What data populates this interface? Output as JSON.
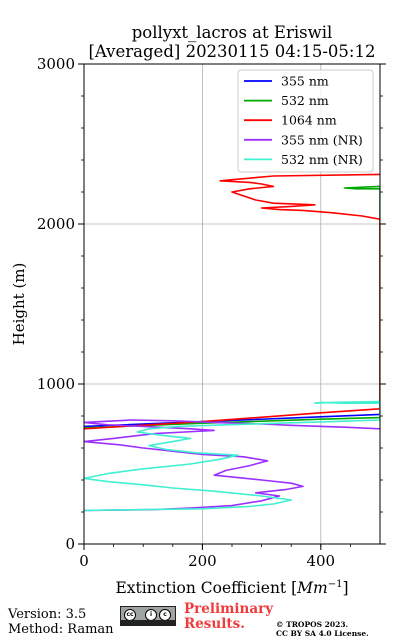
{
  "chart_data": {
    "type": "line",
    "title": "pollyxt_lacros at Eriswil",
    "subtitle": "[Averaged] 20230115 04:15-05:12",
    "xlabel": "Extinction Coefficient [Mm⁻¹]",
    "xlabel_main": "Extinction Coefficient [",
    "xlabel_unit": "Mm",
    "xlabel_sup": "−1",
    "xlabel_close": "]",
    "ylabel": "Height (m)",
    "xlim": [
      0,
      500
    ],
    "ylim": [
      0,
      3000
    ],
    "xticks": [
      "0",
      "200",
      "400"
    ],
    "xtick_values": [
      0,
      200,
      400
    ],
    "yticks": [
      "0",
      "1000",
      "2000",
      "3000"
    ],
    "ytick_values": [
      0,
      1000,
      2000,
      3000
    ],
    "grid": true,
    "legend_position": "top-right",
    "series": [
      {
        "name": "355 nm",
        "color": "#0000ff",
        "x": [
          0,
          200,
          400,
          500
        ],
        "y": [
          735,
          765,
          795,
          810
        ]
      },
      {
        "name": "532 nm",
        "color": "#00aa00",
        "x": [
          0,
          200,
          400,
          500,
          500,
          460,
          440,
          470,
          500
        ],
        "y": [
          725,
          755,
          780,
          790,
          2220,
          2220,
          2225,
          2230,
          2235
        ]
      },
      {
        "name": "1064 nm",
        "color": "#ff0000",
        "x": [
          0,
          200,
          400,
          500,
          500,
          470,
          420,
          370,
          330,
          300,
          350,
          390,
          320,
          290,
          270,
          250,
          280,
          320,
          300,
          280,
          230,
          260,
          290,
          320,
          500
        ],
        "y": [
          720,
          765,
          820,
          845,
          2030,
          2050,
          2070,
          2085,
          2090,
          2100,
          2110,
          2120,
          2130,
          2150,
          2175,
          2200,
          2220,
          2235,
          2250,
          2260,
          2270,
          2280,
          2290,
          2300,
          2310
        ]
      },
      {
        "name": "355 nm (NR)",
        "color": "#9b30ff",
        "x": [
          0,
          120,
          180,
          250,
          300,
          330,
          290,
          340,
          370,
          350,
          300,
          220,
          240,
          280,
          310,
          270,
          200,
          150,
          100,
          60,
          0,
          50,
          120,
          170,
          220,
          180,
          100,
          40,
          0,
          80,
          150,
          220,
          300,
          360,
          440,
          500
        ],
        "y": [
          210,
          215,
          225,
          240,
          270,
          300,
          320,
          340,
          360,
          380,
          400,
          430,
          460,
          490,
          520,
          545,
          560,
          580,
          600,
          620,
          640,
          660,
          690,
          700,
          710,
          720,
          735,
          745,
          760,
          775,
          770,
          760,
          750,
          740,
          730,
          720
        ]
      },
      {
        "name": "532 nm (NR)",
        "color": "#40f0d0",
        "x": [
          0,
          100,
          200,
          280,
          320,
          350,
          300,
          220,
          150,
          100,
          40,
          0,
          40,
          100,
          180,
          230,
          260,
          190,
          140,
          110,
          150,
          180,
          130,
          90,
          110,
          160,
          240,
          330,
          420,
          500,
          500,
          440,
          400,
          390,
          420,
          500
        ],
        "y": [
          210,
          215,
          220,
          235,
          250,
          275,
          300,
          330,
          350,
          370,
          390,
          410,
          440,
          470,
          500,
          530,
          555,
          570,
          590,
          615,
          640,
          660,
          680,
          700,
          720,
          735,
          745,
          755,
          765,
          775,
          880,
          880,
          885,
          880,
          885,
          890
        ]
      }
    ]
  },
  "footer": {
    "version": "Version: 3.5",
    "method": "Method: Raman",
    "preliminary_line1": "Preliminary",
    "preliminary_line2": "Results.",
    "copyright_line1": "© TROPOS 2023.",
    "copyright_line2": "CC BY SA 4.0 License.",
    "license_badge_text": "BY SA"
  }
}
